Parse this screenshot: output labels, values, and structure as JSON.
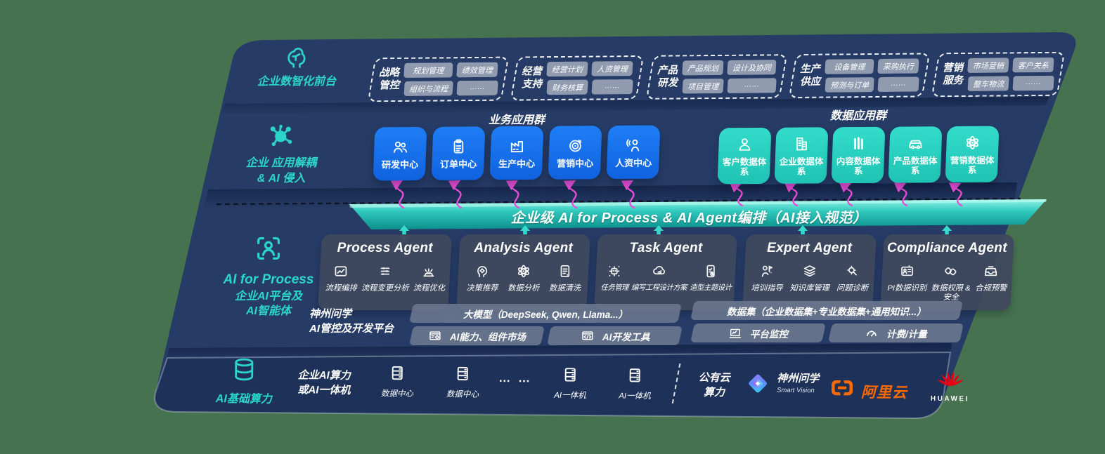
{
  "colors": {
    "page_bg": "#47724f",
    "panel_navy": "#263c66",
    "bottom_navy": "#1e3259",
    "accent_teal": "#2bd6c8",
    "box_blue": "#1774ef",
    "box_teal": "#2bd2c2",
    "arrow_pink": "#e84fd7",
    "bar_gray": "#6e7a92",
    "aliyun_orange": "#ff6a00",
    "huawei_red": "#e60012"
  },
  "front_band": {
    "icon": "brain-icon",
    "label": "企业数智化前台",
    "groups": [
      {
        "label_lines": [
          "战略",
          "管控"
        ],
        "tags": [
          "规划管理",
          "绩效管理",
          "组织与流程",
          "……"
        ]
      },
      {
        "label_lines": [
          "经营",
          "支持"
        ],
        "tags": [
          "经营计划",
          "人资管理",
          "财务核算",
          "……"
        ]
      },
      {
        "label_lines": [
          "产品",
          "研发"
        ],
        "tags": [
          "产品规划",
          "设计及协同",
          "项目管理",
          "……"
        ]
      },
      {
        "label_lines": [
          "生产",
          "供应"
        ],
        "tags": [
          "设备管理",
          "采购执行",
          "预测与订单",
          "……"
        ]
      },
      {
        "label_lines": [
          "营销",
          "服务"
        ],
        "tags": [
          "市场营销",
          "客户关系",
          "整车物流",
          "……"
        ]
      }
    ]
  },
  "decouple_band": {
    "icon": "molecule-icon",
    "label_lines": [
      "企业 应用解耦",
      "& AI 侵入"
    ],
    "business_header": "业务应用群",
    "business_apps": [
      {
        "label": "研发中心",
        "icon": "users-icon"
      },
      {
        "label": "订单中心",
        "icon": "clipboard-icon"
      },
      {
        "label": "生产中心",
        "icon": "factory-icon"
      },
      {
        "label": "营销中心",
        "icon": "target-icon"
      },
      {
        "label": "人资中心",
        "icon": "hr-person-icon"
      }
    ],
    "data_header": "数据应用群",
    "data_apps": [
      {
        "label": "客户数据体系",
        "icon": "user-icon"
      },
      {
        "label": "企业数据体系",
        "icon": "building-icon"
      },
      {
        "label": "内容数据体系",
        "icon": "columns-icon"
      },
      {
        "label": "产品数据体系",
        "icon": "car-icon"
      },
      {
        "label": "营销数据体系",
        "icon": "atom-icon"
      }
    ]
  },
  "midbar": {
    "label": "企业级 AI for Process & AI Agent编排（AI接入规范）"
  },
  "ai_band": {
    "icon": "person-frame-icon",
    "title": "AI for Process",
    "label_lines": [
      "企业AI平台及",
      "AI智能体"
    ],
    "agents": [
      {
        "title": "Process Agent",
        "items": [
          {
            "label": "流程编排",
            "icon": "flow-chart-icon"
          },
          {
            "label": "流程变更分析",
            "icon": "sliders-icon"
          },
          {
            "label": "流程优化",
            "icon": "machine-icon"
          }
        ]
      },
      {
        "title": "Analysis Agent",
        "items": [
          {
            "label": "决策推荐",
            "icon": "head-idea-icon"
          },
          {
            "label": "数据分析",
            "icon": "atom-icon"
          },
          {
            "label": "数据清洗",
            "icon": "doc-clean-icon"
          }
        ]
      },
      {
        "title": "Task Agent",
        "items": [
          {
            "label": "任务管理",
            "icon": "robot-task-icon"
          },
          {
            "label": "编写工程设计方案",
            "icon": "cloud-pen-icon"
          },
          {
            "label": "造型主题设计",
            "icon": "tablet-check-icon"
          }
        ]
      },
      {
        "title": "Expert Agent",
        "items": [
          {
            "label": "培训指导",
            "icon": "teach-icon"
          },
          {
            "label": "知识库管理",
            "icon": "layers-icon"
          },
          {
            "label": "问题诊断",
            "icon": "diagnose-icon"
          }
        ]
      },
      {
        "title": "Compliance Agent",
        "items": [
          {
            "label": "PI数据识别",
            "icon": "id-card-icon"
          },
          {
            "label": "数据权限 &\n安全",
            "icon": "link-lock-icon"
          },
          {
            "label": "合规预警",
            "icon": "tray-alert-icon"
          }
        ]
      }
    ]
  },
  "platform": {
    "label_lines": [
      "神州问学",
      "AI管控及开发平台"
    ],
    "model_bar": "大模型（DeepSeek, Qwen, Llama...）",
    "left_items": [
      {
        "label": "AI能力、组件市场",
        "icon": "window-gear-icon"
      },
      {
        "label": "AI开发工具",
        "icon": "dev-tools-icon"
      }
    ],
    "dataset_bar": "数据集（企业数据集+专业数据集+通用知识...）",
    "right_items": [
      {
        "label": "平台监控",
        "icon": "monitor-icon"
      },
      {
        "label": "计费/计量",
        "icon": "gauge-icon"
      }
    ]
  },
  "bottom_band": {
    "icon": "database-icon",
    "label": "AI基础算力",
    "compute_lines": [
      "企业AI算力",
      "或AI一体机"
    ],
    "nodes": [
      {
        "label": "数据中心",
        "icon": "server-icon"
      },
      {
        "label": "数据中心",
        "icon": "server-icon"
      },
      {
        "label": "…  …",
        "icon": ""
      },
      {
        "label": "AI一体机",
        "icon": "server-icon"
      },
      {
        "label": "AI一体机",
        "icon": "server-icon"
      }
    ],
    "public_cloud_lines": [
      "公有云",
      "算力"
    ],
    "vendors": [
      {
        "name": "神州问学",
        "sub": "Smart Vision",
        "icon": "shenzhou-logo"
      },
      {
        "name": "阿里云",
        "sub": "",
        "icon": "aliyun-logo"
      },
      {
        "name": "HUAWEI",
        "sub": "",
        "icon": "huawei-logo"
      }
    ]
  }
}
